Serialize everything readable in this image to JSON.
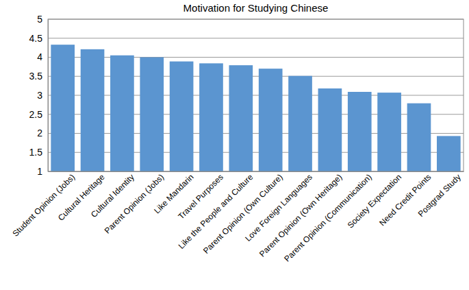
{
  "chart_data": {
    "type": "bar",
    "title": "Motivation for Studying Chinese",
    "categories": [
      "Student Opinion (Jobs)",
      "Cultural Heritage",
      "Cultural Identity",
      "Parent Opinion (Jobs)",
      "Like Mandarin",
      "Travel Purposes",
      "Like the People and Culture",
      "Parent Opinion (Own Culture)",
      "Love Foreign Languages",
      "Parent Opinion (Own Heritage)",
      "Parent Opinion (Communication)",
      "Society Expectation",
      "Need Credit Points",
      "Postgrad Study"
    ],
    "values": [
      4.33,
      4.21,
      4.05,
      4.0,
      3.89,
      3.84,
      3.79,
      3.7,
      3.51,
      3.18,
      3.09,
      3.07,
      2.79,
      1.93
    ],
    "color": "#5b95d0",
    "ylim": [
      1,
      5
    ],
    "yticks": [
      1,
      1.5,
      2,
      2.5,
      3,
      3.5,
      4,
      4.5,
      5
    ],
    "grid": true
  }
}
